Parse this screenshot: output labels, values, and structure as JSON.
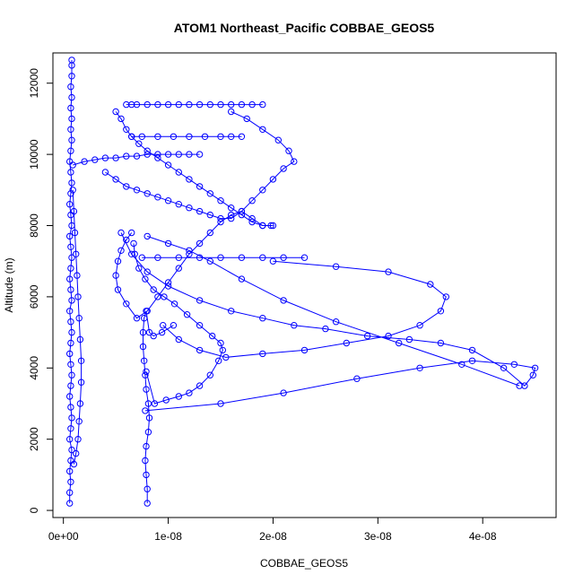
{
  "chart_data": {
    "type": "scatter",
    "title": "ATOM1 Northeast_Pacific COBBAE_GEOS5",
    "xlabel": "COBBAE_GEOS5",
    "ylabel": "Altitude (m)",
    "xlim": [
      -1e-09,
      4.7e-08
    ],
    "ylim": [
      -200,
      12850
    ],
    "x_ticks": [
      0,
      1e-08,
      2e-08,
      3e-08,
      4e-08
    ],
    "x_tick_labels": [
      "0e+00",
      "1e-08",
      "2e-08",
      "3e-08",
      "4e-08"
    ],
    "y_ticks": [
      0,
      2000,
      4000,
      6000,
      8000,
      10000,
      12000
    ],
    "y_tick_labels": [
      "0",
      "2000",
      "4000",
      "6000",
      "8000",
      "10000",
      "12000"
    ],
    "grid": false,
    "legend": "none",
    "marker": "open-circle",
    "colors": {
      "series": "#0000ff",
      "axes": "#000000"
    },
    "series": [
      {
        "x": [
          6e-10,
          6e-10,
          7e-10,
          6e-10,
          7e-10,
          8e-10,
          6e-10,
          7e-10,
          8e-10,
          7e-10,
          6e-10,
          7e-10,
          8e-10,
          7e-10,
          6e-10,
          7e-10,
          8e-10,
          7e-10,
          6e-10,
          8e-10,
          7e-10,
          6e-10,
          7e-10,
          8e-10,
          7e-10,
          6e-10,
          8e-10,
          7e-10,
          6e-10,
          7e-10,
          8e-10,
          7e-10,
          6e-10,
          7e-10,
          8e-10,
          7e-10,
          8e-10,
          7e-10,
          8e-10,
          7e-10,
          8e-10,
          8e-10,
          8e-10
        ],
        "y": [
          200,
          500,
          800,
          1100,
          1400,
          1700,
          2000,
          2300,
          2600,
          2900,
          3200,
          3500,
          3800,
          4100,
          4400,
          4700,
          5000,
          5300,
          5600,
          5900,
          6200,
          6500,
          6800,
          7100,
          7400,
          7700,
          8000,
          8300,
          8600,
          8900,
          9200,
          9500,
          9800,
          10100,
          10400,
          10700,
          11000,
          11300,
          11600,
          11900,
          12200,
          12500,
          12650
        ]
      },
      {
        "x": [
          1e-09,
          1.2e-09,
          1.4e-09,
          1.5e-09,
          1.6e-09,
          1.7e-09,
          1.7e-09,
          1.6e-09,
          1.5e-09,
          1.4e-09,
          1.3e-09,
          1.2e-09,
          1.1e-09,
          1e-09,
          9e-10
        ],
        "y": [
          1300,
          1600,
          2000,
          2500,
          3000,
          3600,
          4200,
          4800,
          5400,
          6000,
          6600,
          7200,
          7800,
          8400,
          9000
        ]
      },
      {
        "x": [
          8e-09,
          8e-09,
          7.9e-09,
          7.8e-09,
          7.9e-09,
          8.1e-09,
          8.2e-09,
          8.1e-09,
          7.9e-09,
          7.8e-09,
          7.7e-09,
          7.6e-09,
          7.6e-09,
          7.7e-09,
          7.9e-09,
          8.2e-09,
          8.6e-09,
          9.4e-09,
          1.05e-08
        ],
        "y": [
          200,
          600,
          1000,
          1400,
          1800,
          2200,
          2600,
          3000,
          3400,
          3800,
          4200,
          4600,
          5000,
          5400,
          5600,
          5000,
          4900,
          5000,
          5200
        ]
      },
      {
        "x": [
          7.9e-09,
          8.7e-09,
          9.8e-09,
          1.1e-08,
          1.2e-08,
          1.3e-08,
          1.4e-08,
          1.48e-08,
          1.52e-08,
          1.5e-08,
          1.42e-08,
          1.3e-08,
          1.18e-08,
          1.06e-08,
          9.6e-09,
          8.6e-09,
          7.8e-09,
          7.2e-09,
          6.8e-09,
          6.7e-09
        ],
        "y": [
          3900,
          3000,
          3100,
          3200,
          3300,
          3500,
          3800,
          4200,
          4500,
          4700,
          4900,
          5200,
          5500,
          5800,
          6000,
          6200,
          6500,
          6800,
          7200,
          7500
        ]
      },
      {
        "x": [
          7.8e-09,
          1.5e-08,
          2.1e-08,
          2.8e-08,
          3.4e-08,
          3.9e-08,
          4.3e-08,
          4.5e-08,
          4.48e-08,
          4.4e-08,
          4.2e-08,
          3.9e-08,
          3.6e-08,
          3.3e-08,
          2.9e-08,
          2.5e-08,
          2.2e-08,
          1.9e-08,
          1.6e-08,
          1.3e-08,
          1e-08,
          8e-09,
          6.5e-09,
          5.5e-09
        ],
        "y": [
          2800,
          3000,
          3300,
          3700,
          4000,
          4200,
          4100,
          4000,
          3800,
          3500,
          4000,
          4500,
          4700,
          4800,
          4900,
          5100,
          5200,
          5400,
          5600,
          5900,
          6300,
          6700,
          7200,
          7800
        ]
      },
      {
        "x": [
          2e-08,
          2.6e-08,
          3.1e-08,
          3.5e-08,
          3.65e-08,
          3.6e-08,
          3.4e-08,
          3.1e-08,
          2.7e-08,
          2.3e-08,
          1.9e-08,
          1.55e-08,
          1.3e-08,
          1.1e-08,
          9.5e-09
        ],
        "y": [
          7000,
          6850,
          6700,
          6350,
          6000,
          5600,
          5200,
          4900,
          4700,
          4500,
          4400,
          4300,
          4500,
          4800,
          5200
        ]
      },
      {
        "x": [
          4.35e-08,
          3.8e-08,
          3.2e-08,
          2.6e-08,
          2.1e-08,
          1.7e-08,
          1.4e-08,
          1.2e-08,
          1e-08,
          8e-09
        ],
        "y": [
          3500,
          4100,
          4700,
          5300,
          5900,
          6500,
          7000,
          7300,
          7500,
          7700
        ]
      },
      {
        "x": [
          7.5e-09,
          9e-09,
          1.1e-08,
          1.3e-08,
          1.5e-08,
          1.7e-08,
          1.9e-08,
          2.1e-08,
          2.3e-08
        ],
        "y": [
          7100,
          7100,
          7100,
          7100,
          7100,
          7100,
          7100,
          7100,
          7100
        ]
      },
      {
        "x": [
          6.5e-09,
          6e-09,
          5.5e-09,
          5.2e-09,
          5e-09,
          5.2e-09,
          6e-09,
          7e-09,
          8e-09,
          9e-09,
          1e-08,
          1.1e-08,
          1.2e-08,
          1.3e-08,
          1.4e-08,
          1.5e-08,
          1.6e-08,
          1.7e-08,
          1.8e-08,
          1.9e-08,
          2e-08
        ],
        "y": [
          7800,
          7600,
          7300,
          7000,
          6600,
          6200,
          5800,
          5400,
          5600,
          6000,
          6400,
          6800,
          7200,
          7500,
          7800,
          8100,
          8300,
          8400,
          8200,
          8000,
          8000
        ]
      },
      {
        "x": [
          4e-09,
          5e-09,
          6e-09,
          7e-09,
          8e-09,
          9e-09,
          1e-08,
          1.1e-08,
          1.2e-08,
          1.3e-08,
          1.4e-08,
          1.5e-08,
          1.6e-08,
          1.7e-08,
          1.8e-08,
          1.9e-08,
          2e-08,
          2.1e-08,
          2.2e-08,
          2.15e-08,
          2.05e-08,
          1.9e-08,
          1.75e-08,
          1.6e-08
        ],
        "y": [
          9500,
          9300,
          9100,
          9000,
          8900,
          8800,
          8700,
          8600,
          8500,
          8400,
          8300,
          8200,
          8200,
          8400,
          8700,
          9000,
          9300,
          9600,
          9800,
          10100,
          10400,
          10700,
          11000,
          11200
        ]
      },
      {
        "x": [
          5e-09,
          5.5e-09,
          6e-09,
          6.5e-09,
          7.2e-09,
          8e-09,
          9e-09,
          1e-08,
          1.1e-08,
          1.2e-08,
          1.3e-08,
          1.4e-08,
          1.5e-08,
          1.6e-08,
          1.7e-08,
          1.8e-08,
          1.9e-08,
          1.98e-08
        ],
        "y": [
          11200,
          11000,
          10700,
          10500,
          10300,
          10100,
          9900,
          9700,
          9500,
          9300,
          9100,
          8900,
          8700,
          8500,
          8300,
          8100,
          8000,
          8000
        ]
      },
      {
        "x": [
          6.5e-09,
          7.5e-09,
          9e-09,
          1.05e-08,
          1.2e-08,
          1.35e-08,
          1.5e-08,
          1.6e-08,
          1.7e-08
        ],
        "y": [
          10500,
          10500,
          10500,
          10500,
          10500,
          10500,
          10500,
          10500,
          10500
        ]
      },
      {
        "x": [
          9e-10,
          2e-09,
          3e-09,
          4e-09,
          5e-09,
          6e-09,
          7e-09,
          8e-09,
          9e-09,
          1e-08,
          1.1e-08,
          1.2e-08,
          1.3e-08
        ],
        "y": [
          9700,
          9800,
          9850,
          9900,
          9900,
          9950,
          9950,
          10000,
          10000,
          10000,
          10000,
          10000,
          10000
        ]
      },
      {
        "x": [
          6e-09,
          6.5e-09,
          7e-09,
          8e-09,
          9e-09,
          1e-08,
          1.1e-08,
          1.2e-08,
          1.3e-08,
          1.4e-08,
          1.5e-08,
          1.6e-08,
          1.7e-08,
          1.8e-08,
          1.9e-08
        ],
        "y": [
          11400,
          11400,
          11400,
          11400,
          11400,
          11400,
          11400,
          11400,
          11400,
          11400,
          11400,
          11400,
          11400,
          11400,
          11400
        ]
      }
    ]
  }
}
